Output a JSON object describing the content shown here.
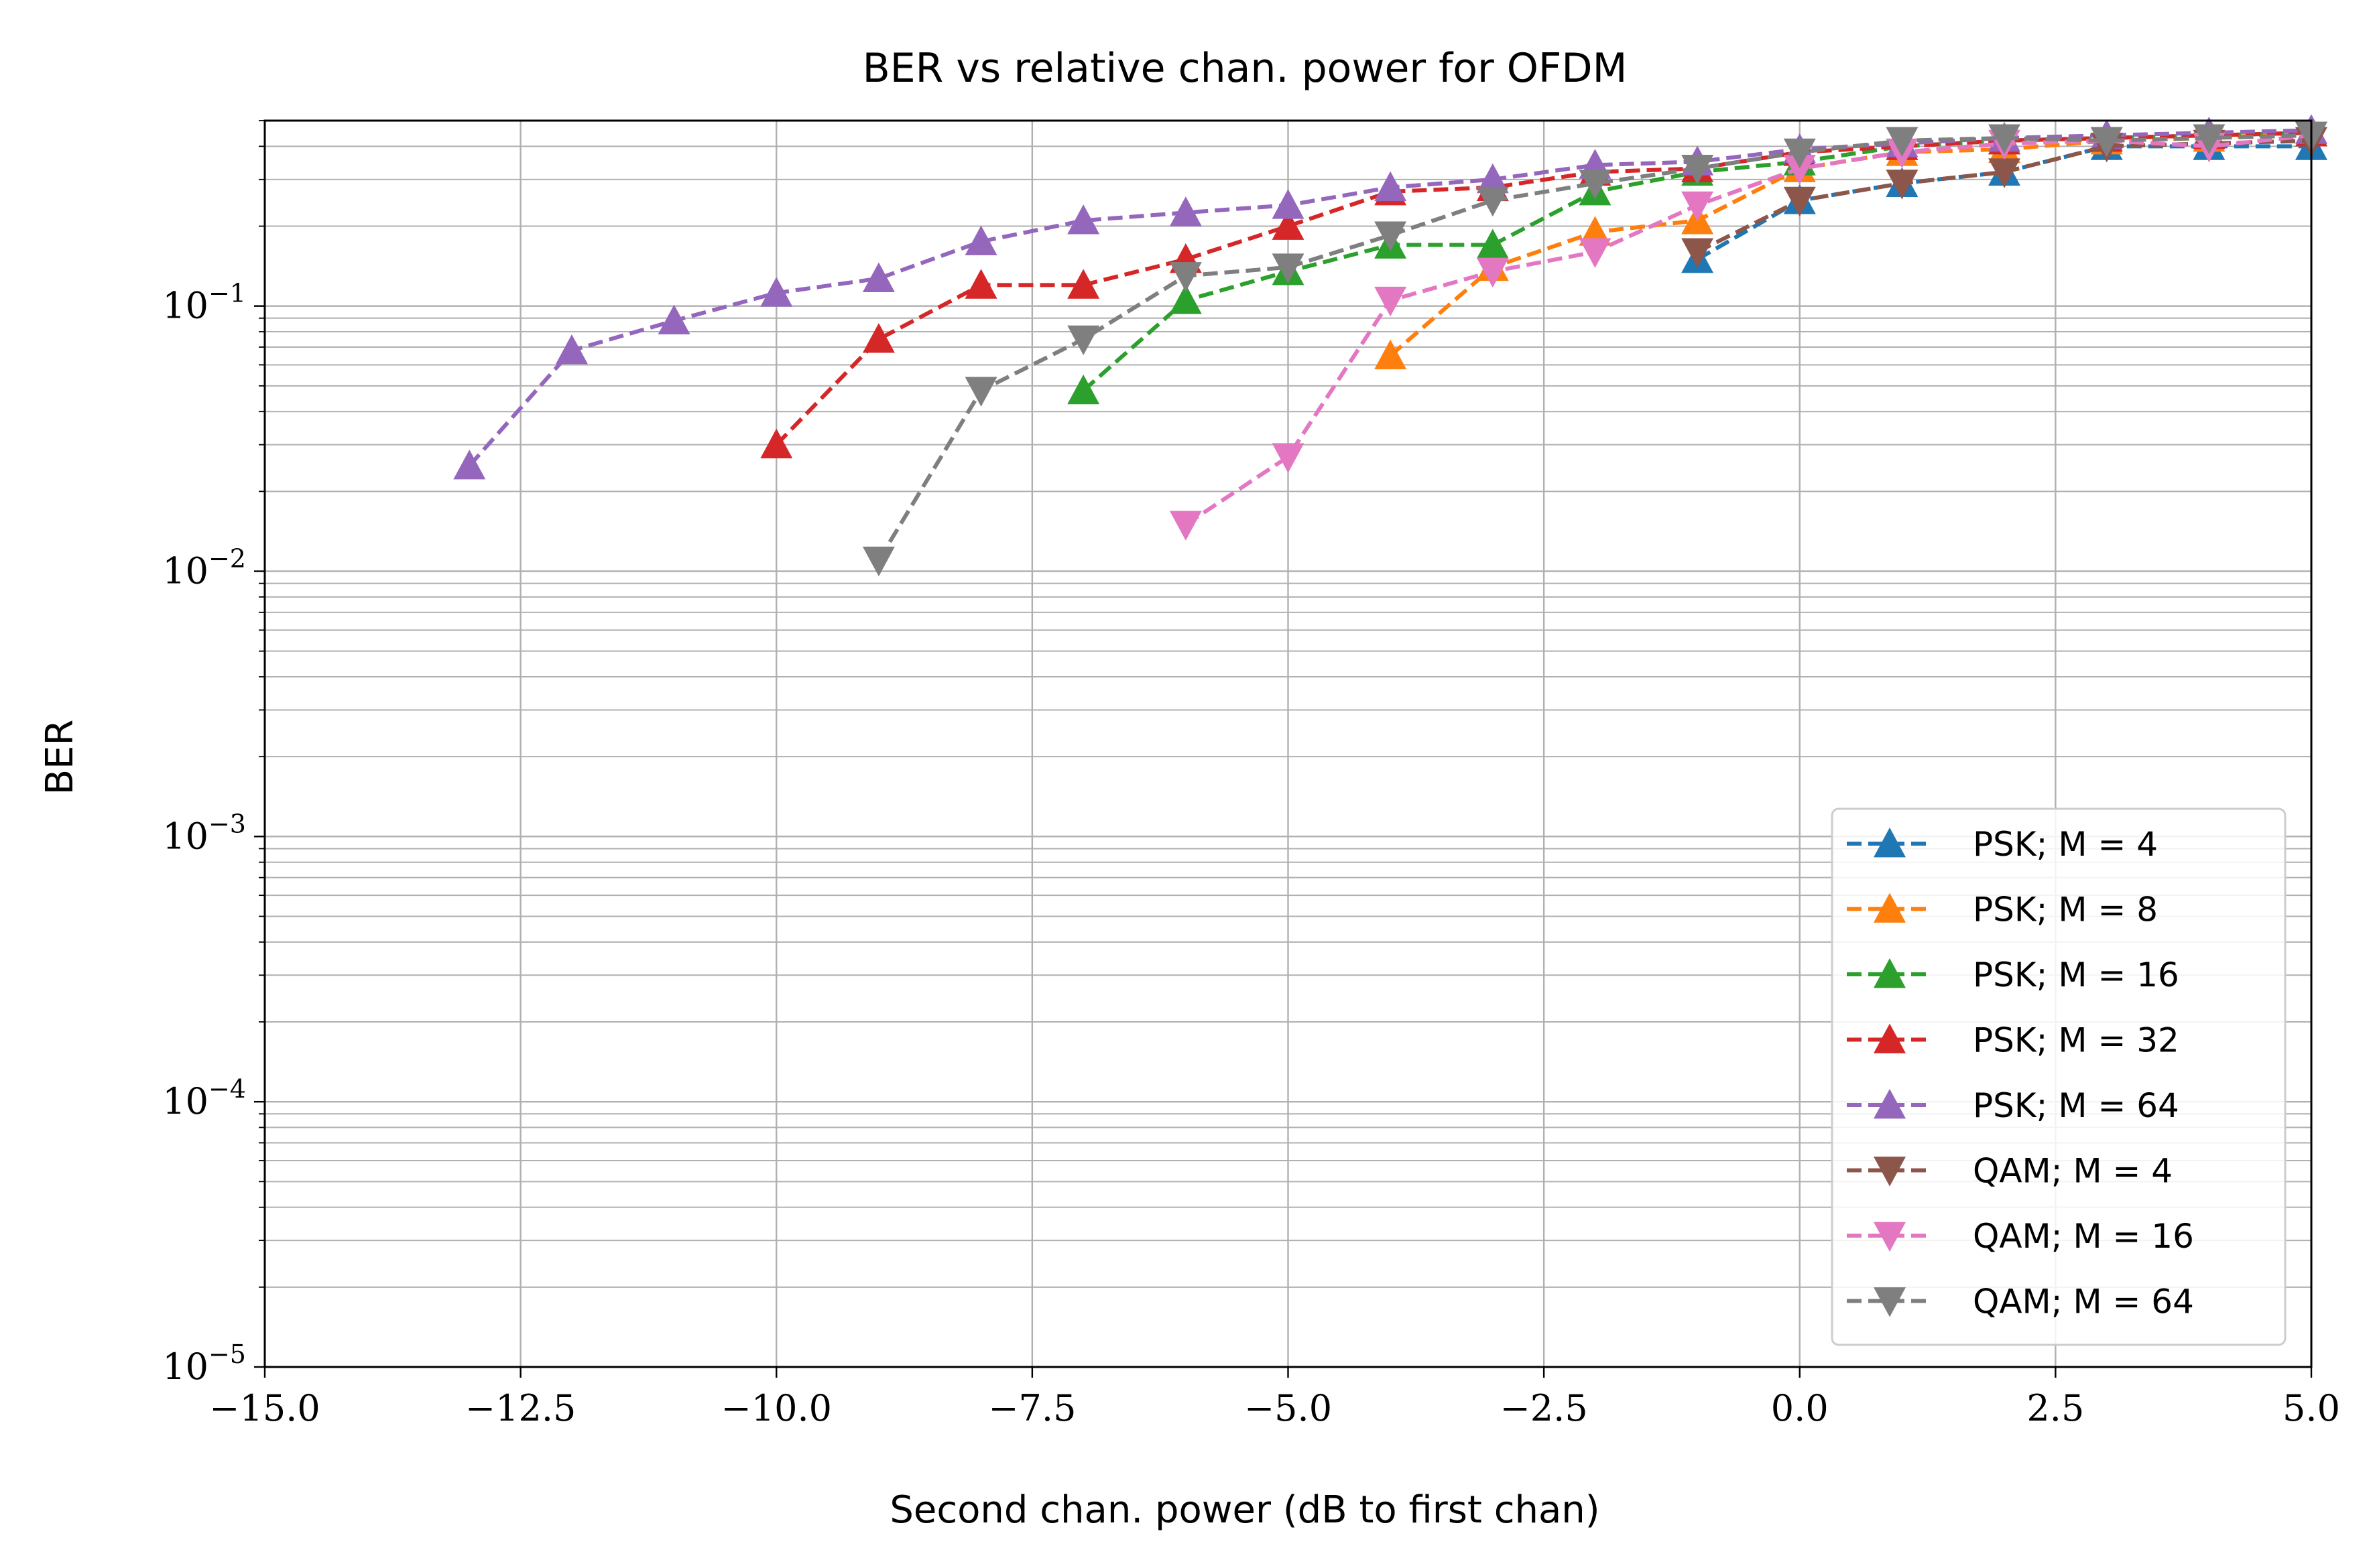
{
  "chart_data": {
    "type": "line",
    "title": "BER vs relative chan. power for OFDM",
    "xlabel": "Second chan. power (dB to first chan)",
    "ylabel": "BER",
    "xlim": [
      -15,
      5
    ],
    "ylim": [
      1e-05,
      0.5
    ],
    "yscale": "log",
    "grid": true,
    "legend_position": "bottom-right",
    "x_ticks": [
      {
        "value": -15,
        "label": "−15.0"
      },
      {
        "value": -12.5,
        "label": "−12.5"
      },
      {
        "value": -10,
        "label": "−10.0"
      },
      {
        "value": -7.5,
        "label": "−7.5"
      },
      {
        "value": -5,
        "label": "−5.0"
      },
      {
        "value": -2.5,
        "label": "−2.5"
      },
      {
        "value": 0,
        "label": "0.0"
      },
      {
        "value": 2.5,
        "label": "2.5"
      },
      {
        "value": 5,
        "label": "5.0"
      }
    ],
    "y_ticks": [
      {
        "value": 0.1,
        "mant": "10",
        "exp": "−1"
      },
      {
        "value": 0.01,
        "mant": "10",
        "exp": "−2"
      },
      {
        "value": 0.001,
        "mant": "10",
        "exp": "−3"
      },
      {
        "value": 0.0001,
        "mant": "10",
        "exp": "−4"
      },
      {
        "value": 1e-05,
        "mant": "10",
        "exp": "−5"
      }
    ],
    "series": [
      {
        "name": "PSK; M = 4",
        "color": "#1f77b4",
        "marker": "triangle-up",
        "x": [
          -1,
          0,
          1,
          2,
          3,
          4,
          5
        ],
        "y": [
          0.15,
          0.25,
          0.29,
          0.32,
          0.4,
          0.4,
          0.4
        ]
      },
      {
        "name": "PSK; M = 8",
        "color": "#ff7f0e",
        "marker": "triangle-up",
        "x": [
          -4,
          -3,
          -2,
          -1,
          0,
          1,
          2,
          3,
          4,
          5
        ],
        "y": [
          0.065,
          0.14,
          0.19,
          0.21,
          0.33,
          0.38,
          0.39,
          0.42,
          0.43,
          0.45
        ]
      },
      {
        "name": "PSK; M = 16",
        "color": "#2ca02c",
        "marker": "triangle-up",
        "x": [
          -7,
          -6,
          -5,
          -4,
          -3,
          -2,
          -1,
          0,
          1,
          2,
          3,
          4,
          5
        ],
        "y": [
          0.048,
          0.105,
          0.135,
          0.17,
          0.17,
          0.27,
          0.32,
          0.35,
          0.4,
          0.42,
          0.43,
          0.44,
          0.45
        ]
      },
      {
        "name": "PSK; M = 32",
        "color": "#d62728",
        "marker": "triangle-up",
        "x": [
          -10,
          -9,
          -8,
          -7,
          -6,
          -5,
          -4,
          -3,
          -2,
          -1,
          0,
          1,
          2,
          3,
          4,
          5
        ],
        "y": [
          0.03,
          0.075,
          0.12,
          0.12,
          0.15,
          0.2,
          0.27,
          0.28,
          0.32,
          0.33,
          0.38,
          0.4,
          0.42,
          0.43,
          0.44,
          0.45
        ]
      },
      {
        "name": "PSK; M = 64",
        "color": "#9467bd",
        "marker": "triangle-up",
        "x": [
          -13,
          -12,
          -11,
          -10,
          -9,
          -8,
          -7,
          -6,
          -5,
          -4,
          -3,
          -2,
          -1,
          0,
          1,
          2,
          3,
          4,
          5
        ],
        "y": [
          0.025,
          0.068,
          0.088,
          0.112,
          0.127,
          0.175,
          0.21,
          0.225,
          0.24,
          0.28,
          0.3,
          0.34,
          0.35,
          0.39,
          0.41,
          0.43,
          0.44,
          0.45,
          0.46
        ]
      },
      {
        "name": "QAM; M = 4",
        "color": "#8c564b",
        "marker": "triangle-down",
        "x": [
          -1,
          0,
          1,
          2,
          3,
          4,
          5
        ],
        "y": [
          0.16,
          0.25,
          0.29,
          0.32,
          0.4,
          0.41,
          0.42
        ]
      },
      {
        "name": "QAM; M = 16",
        "color": "#e377c2",
        "marker": "triangle-down",
        "x": [
          -6,
          -5,
          -4,
          -3,
          -2,
          -1,
          0,
          1,
          2,
          3,
          4,
          5
        ],
        "y": [
          0.015,
          0.027,
          0.105,
          0.135,
          0.16,
          0.24,
          0.33,
          0.38,
          0.41,
          0.42,
          0.4,
          0.44
        ]
      },
      {
        "name": "QAM; M = 64",
        "color": "#7f7f7f",
        "marker": "triangle-down",
        "x": [
          -9,
          -8,
          -7,
          -6,
          -5,
          -4,
          -3,
          -2,
          -1,
          0,
          1,
          2,
          3,
          4,
          5
        ],
        "y": [
          0.011,
          0.048,
          0.075,
          0.13,
          0.14,
          0.185,
          0.25,
          0.29,
          0.33,
          0.38,
          0.42,
          0.43,
          0.42,
          0.43,
          0.44
        ]
      }
    ]
  }
}
